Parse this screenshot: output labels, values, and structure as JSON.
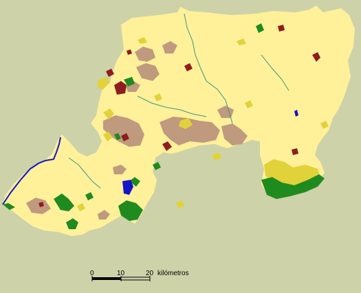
{
  "map": {
    "background_color": "#cdd2a9",
    "land_color": "#fff09a",
    "categories": [
      {
        "key": "base",
        "color": "#fff09a"
      },
      {
        "key": "agri",
        "color": "#e2d23a"
      },
      {
        "key": "transitional",
        "color": "#bf9a7e"
      },
      {
        "key": "urban",
        "color": "#8f1c1f"
      },
      {
        "key": "forest",
        "color": "#1f8b1f"
      },
      {
        "key": "water",
        "color": "#1414c8"
      },
      {
        "key": "rivers",
        "color": "#3a9a7a"
      }
    ]
  },
  "scale_bar": {
    "tick_0": "0",
    "tick_10": "10",
    "tick_20": "20",
    "unit": "kilómetros"
  }
}
